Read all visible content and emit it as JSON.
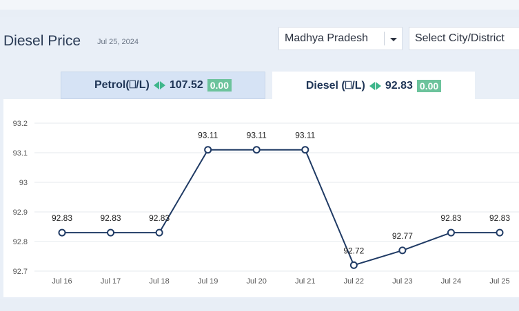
{
  "header": {
    "title": "Diesel Price",
    "date": "Jul 25, 2024",
    "state_select": "Madhya Pradesh",
    "city_select": "Select City/District"
  },
  "tabs": [
    {
      "label": "Petrol(⎕/L)",
      "price": "107.52",
      "change": "0.00"
    },
    {
      "label": "Diesel (⎕/L)",
      "price": "92.83",
      "change": "0.00"
    }
  ],
  "colors": {
    "line": "#1f3a64",
    "badge": "#6cc39c",
    "arrow": "#3fb68b"
  },
  "chart_data": {
    "type": "line",
    "categories": [
      "Jul 16",
      "Jul 17",
      "Jul 18",
      "Jul 19",
      "Jul 20",
      "Jul 21",
      "Jul 22",
      "Jul 23",
      "Jul 24",
      "Jul 25"
    ],
    "values": [
      92.83,
      92.83,
      92.83,
      93.11,
      93.11,
      93.11,
      92.72,
      92.77,
      92.83,
      92.83
    ],
    "data_labels": [
      "92.83",
      "92.83",
      "92.83",
      "93.11",
      "93.11",
      "93.11",
      "92.72",
      "92.77",
      "92.83",
      "92.83"
    ],
    "yticks": [
      "92.7",
      "92.8",
      "92.9",
      "93",
      "93.1",
      "93.2"
    ],
    "ylim": [
      92.7,
      93.2
    ],
    "grid": true,
    "title": "",
    "xlabel": "",
    "ylabel": ""
  }
}
